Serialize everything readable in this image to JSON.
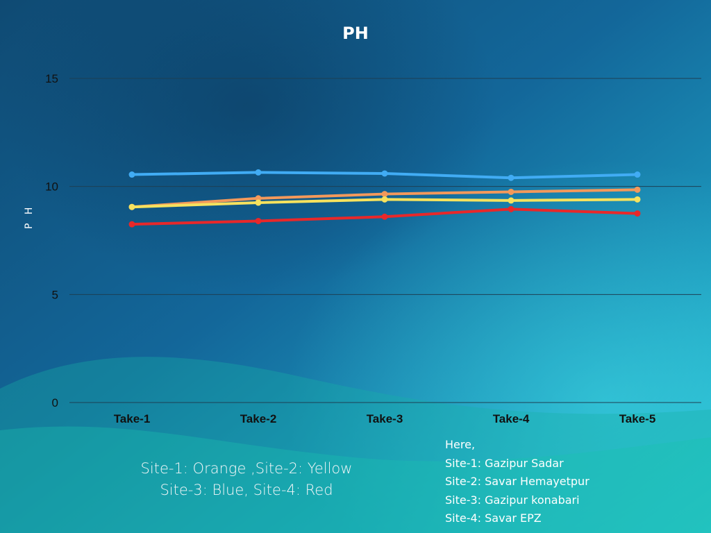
{
  "colors": {
    "site1": "#f3995b",
    "site2": "#f6e25e",
    "site3": "#41acf4",
    "site4": "#e8282a",
    "gridline": "#1d3f53",
    "tick_text": "#111111"
  },
  "chart_data": {
    "type": "line",
    "title": "PH",
    "xlabel": "",
    "ylabel": "P H",
    "categories": [
      "Take-1",
      "Take-2",
      "Take-3",
      "Take-4",
      "Take-5"
    ],
    "ylim": [
      0,
      15
    ],
    "yticks": [
      0,
      5,
      10,
      15
    ],
    "grid": true,
    "series": [
      {
        "key": "site1",
        "values": [
          9.05,
          9.45,
          9.65,
          9.75,
          9.85
        ]
      },
      {
        "key": "site2",
        "values": [
          9.05,
          9.25,
          9.4,
          9.35,
          9.4
        ]
      },
      {
        "key": "site3",
        "values": [
          10.55,
          10.65,
          10.6,
          10.4,
          10.55
        ]
      },
      {
        "key": "site4",
        "values": [
          8.25,
          8.4,
          8.6,
          8.95,
          8.75
        ]
      }
    ]
  },
  "legend_note": {
    "line1": "Site-1: Orange ,Site-2: Yellow",
    "line2": "Site-3: Blue, Site-4: Red"
  },
  "sites_note": {
    "heading": "Here,",
    "site1": "Site-1: Gazipur Sadar",
    "site2": "Site-2: Savar Hemayetpur",
    "site3": "Site-3: Gazipur konabari",
    "site4": "Site-4: Savar EPZ"
  }
}
